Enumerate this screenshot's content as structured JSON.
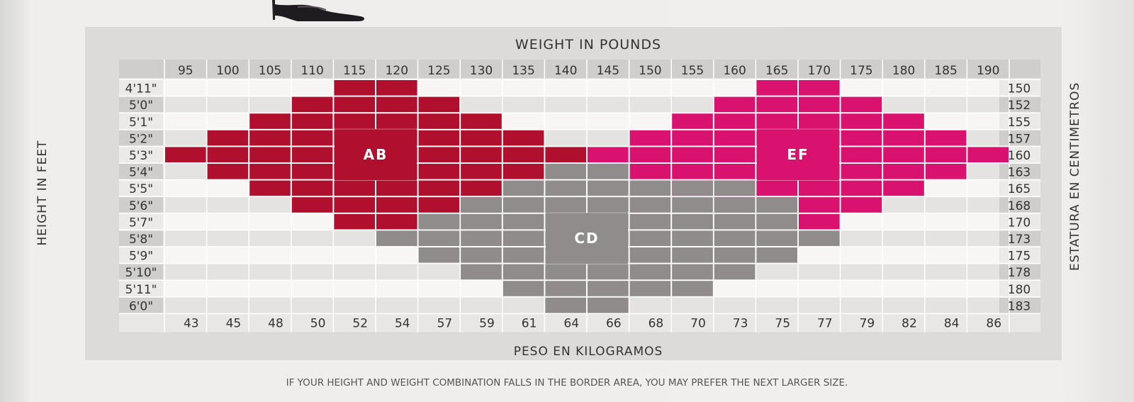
{
  "chart_data": {
    "type": "heatmap",
    "title": "WEIGHT IN POUNDS",
    "xlabel": "PESO EN KILOGRAMOS",
    "ylabel": "HEIGHT IN FEET",
    "ylabel_right": "ESTATURA EN CENTIMETROS",
    "footnote": "IF YOUR HEIGHT AND WEIGHT COMBINATION FALLS IN THE BORDER AREA, YOU MAY PREFER THE NEXT LARGER SIZE.",
    "weights_lb": [
      "95",
      "100",
      "105",
      "110",
      "115",
      "120",
      "125",
      "130",
      "135",
      "140",
      "145",
      "150",
      "155",
      "160",
      "165",
      "170",
      "175",
      "180",
      "185",
      "190"
    ],
    "weights_kg": [
      "43",
      "45",
      "48",
      "50",
      "52",
      "54",
      "57",
      "59",
      "61",
      "64",
      "66",
      "68",
      "70",
      "73",
      "75",
      "77",
      "79",
      "82",
      "84",
      "86"
    ],
    "heights_ft": [
      "4'11\"",
      "5'0\"",
      "5'1\"",
      "5'2\"",
      "5'3\"",
      "5'4\"",
      "5'5\"",
      "5'6\"",
      "5'7\"",
      "5'8\"",
      "5'9\"",
      "5'10\"",
      "5'11\"",
      "6'0\""
    ],
    "heights_cm": [
      "150",
      "152",
      "155",
      "157",
      "160",
      "163",
      "165",
      "168",
      "170",
      "173",
      "175",
      "178",
      "180",
      "183"
    ],
    "sizes": [
      {
        "name": "AB",
        "color": "#b0102e",
        "rows": [
          [
            4,
            5
          ],
          [
            3,
            6
          ],
          [
            2,
            7
          ],
          [
            1,
            8
          ],
          [
            0,
            9
          ],
          [
            1,
            8
          ],
          [
            2,
            7
          ],
          [
            3,
            7
          ],
          [
            4,
            6
          ],
          []
        ]
      },
      {
        "name": "EF",
        "color": "#d8126e",
        "rows": [
          [
            14,
            15
          ],
          [
            13,
            16
          ],
          [
            12,
            17
          ],
          [
            11,
            18
          ],
          [
            10,
            19
          ],
          [
            11,
            18
          ],
          [
            12,
            17
          ],
          [
            13,
            16
          ],
          [
            14,
            15
          ],
          []
        ]
      },
      {
        "name": "CD",
        "color": "#8f8c8b",
        "rows": [
          [],
          [],
          [],
          [],
          [],
          [
            9,
            10
          ],
          [
            8,
            13
          ],
          [
            7,
            14
          ],
          [
            6,
            14
          ],
          [
            5,
            15
          ],
          [
            6,
            14
          ],
          [
            7,
            13
          ],
          [
            8,
            12
          ],
          [
            9,
            10
          ]
        ]
      }
    ],
    "grid": true
  },
  "shoe_icon": "high-heel-shoe-icon",
  "colors": {
    "panel": "#dcdbd9",
    "stripe_light": "#f7f6f4",
    "stripe_dark": "#e4e3e1",
    "label_bg": "#cfcecc"
  }
}
